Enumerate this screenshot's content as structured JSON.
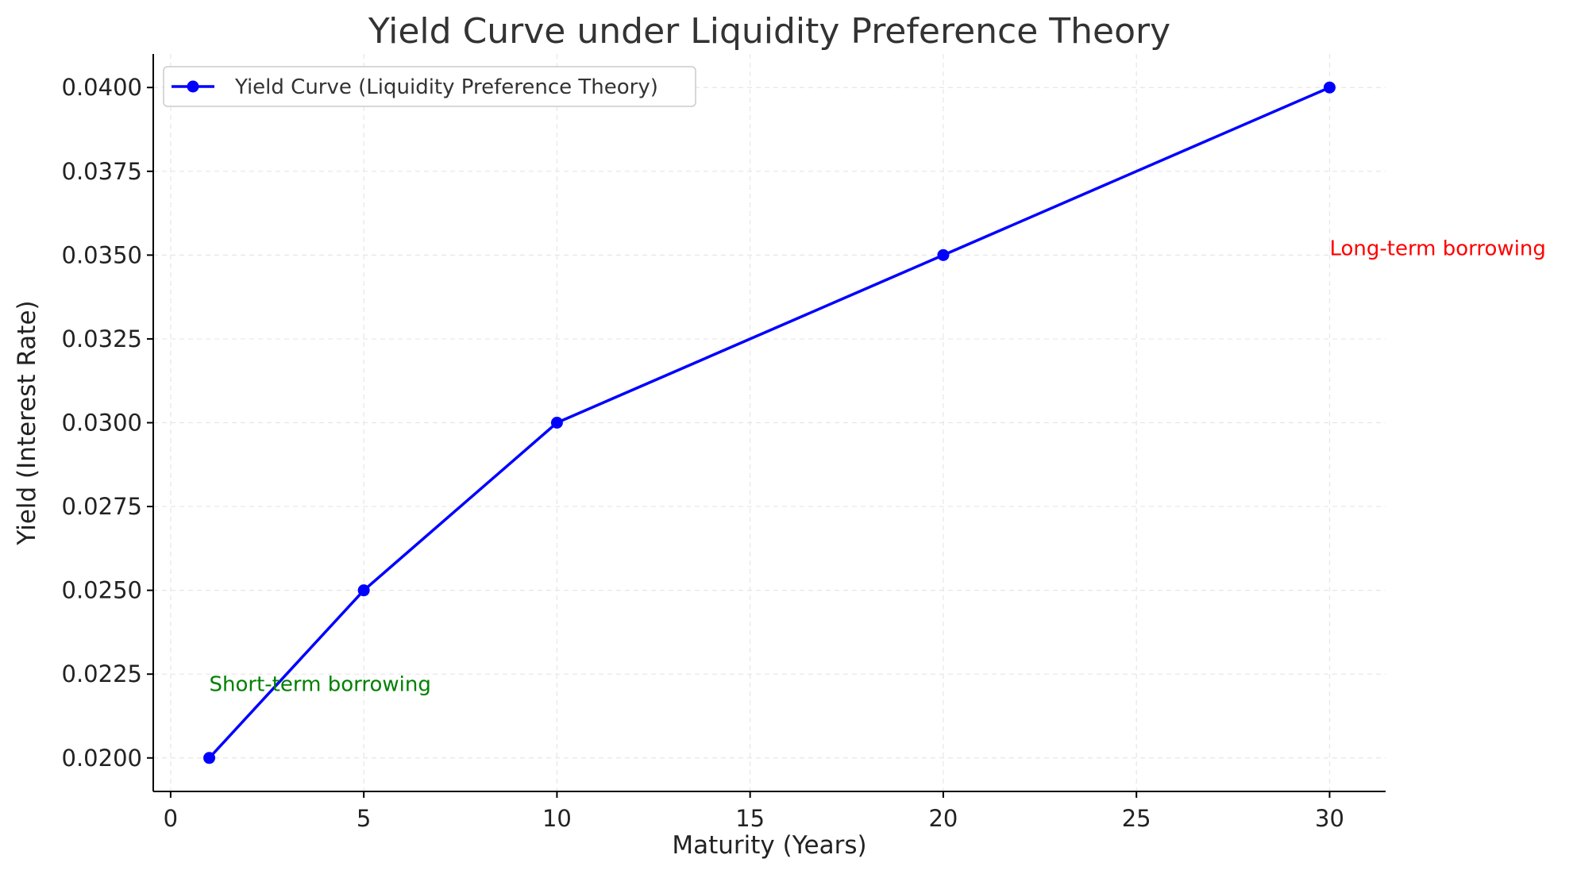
{
  "chart_data": {
    "type": "line",
    "title": "Yield Curve under Liquidity Preference Theory",
    "xlabel": "Maturity (Years)",
    "ylabel": "Yield (Interest Rate)",
    "xlim": [
      -0.45,
      31.45
    ],
    "ylim": [
      0.019,
      0.041
    ],
    "xticks": [
      0,
      5,
      10,
      15,
      20,
      25,
      30
    ],
    "yticks": [
      0.02,
      0.0225,
      0.025,
      0.0275,
      0.03,
      0.0325,
      0.035,
      0.0375,
      0.04
    ],
    "ytick_labels": [
      "0.0200",
      "0.0225",
      "0.0250",
      "0.0275",
      "0.0300",
      "0.0325",
      "0.0350",
      "0.0375",
      "0.0400"
    ],
    "grid": true,
    "legend_position": "top-left",
    "series": [
      {
        "name": "Yield Curve (Liquidity Preference Theory)",
        "color": "#0000ff",
        "marker": "circle",
        "x": [
          1,
          5,
          10,
          20,
          30
        ],
        "values": [
          0.02,
          0.025,
          0.03,
          0.035,
          0.04
        ]
      }
    ],
    "annotations": [
      {
        "text": "Short-term borrowing",
        "x": 1,
        "y": 0.022,
        "color": "#008000"
      },
      {
        "text": "Long-term borrowing",
        "x": 30,
        "y": 0.035,
        "color": "#ff0000"
      }
    ]
  }
}
